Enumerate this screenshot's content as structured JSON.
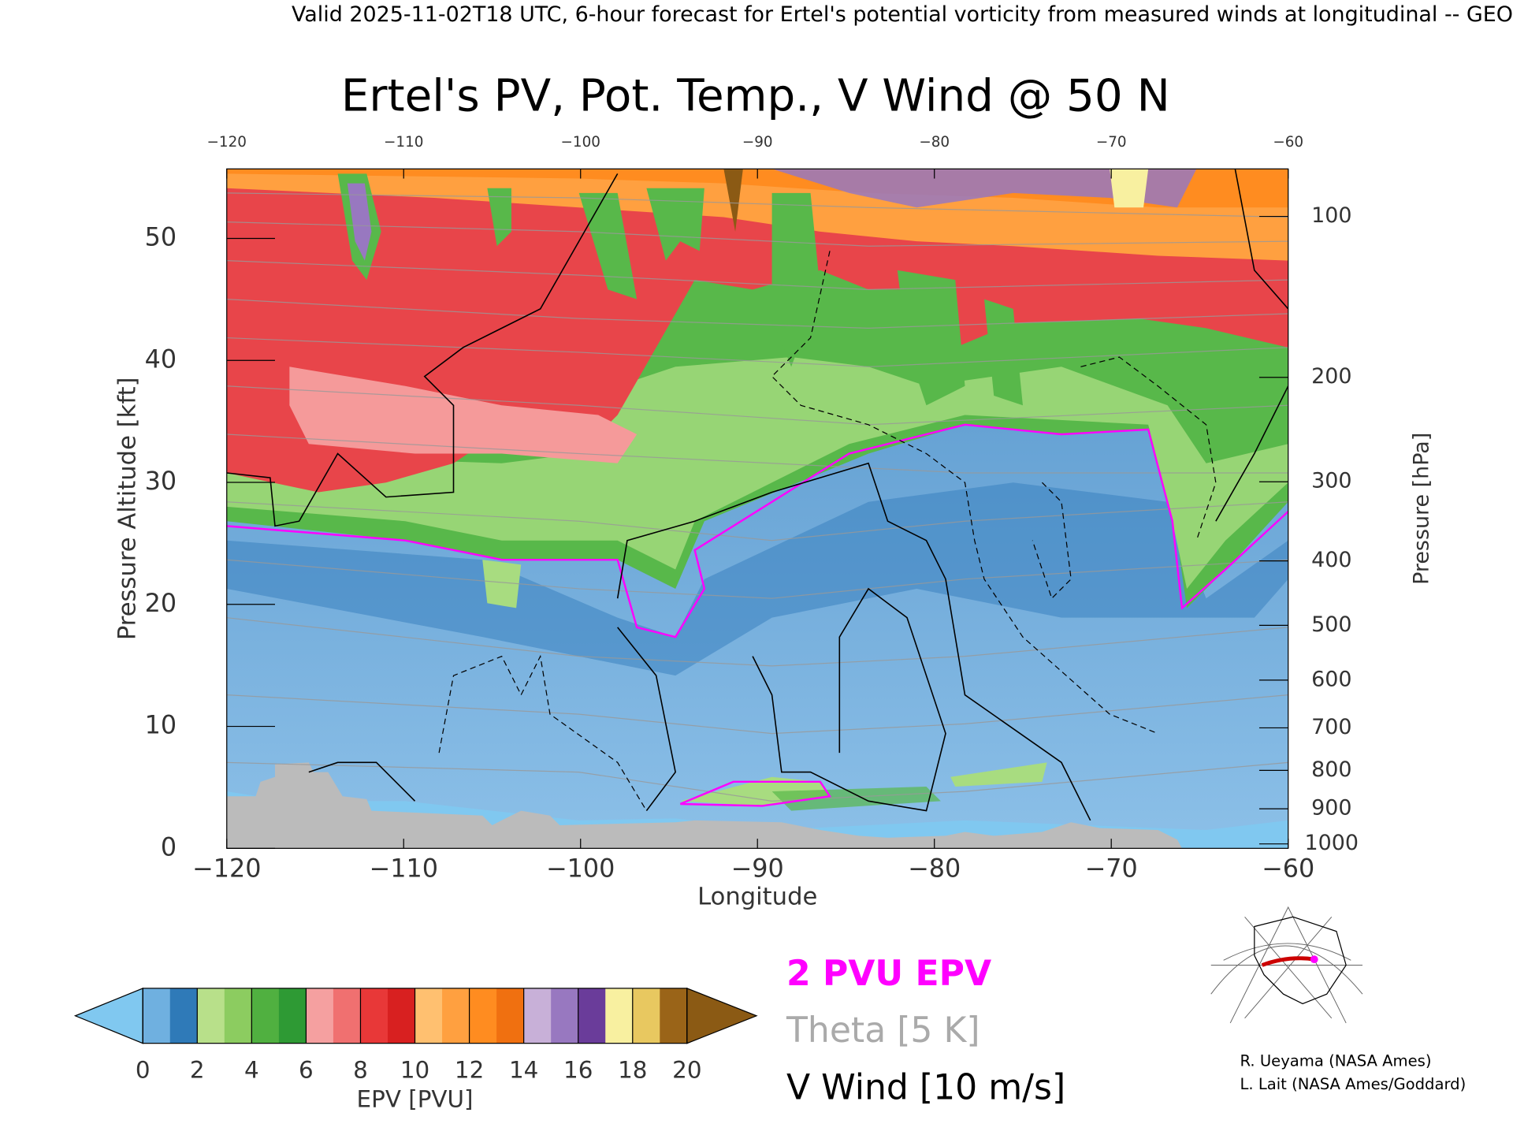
{
  "chart_data": {
    "type": "contour",
    "header": "Valid 2025-11-02T18 UTC, 6-hour forecast for Ertel's potential vorticity from measured winds at longitudinal -- GEO",
    "title": "Ertel's PV, Pot. Temp., V Wind @ 50 N",
    "xlabel": "Longitude",
    "ylabel": "Pressure Altitude [kft]",
    "y2label": "Pressure [hPa]",
    "xlim": [
      -120,
      -60
    ],
    "xticks": [
      {
        "value": -120,
        "label": "−120"
      },
      {
        "value": -110,
        "label": "−110"
      },
      {
        "value": -100,
        "label": "−100"
      },
      {
        "value": -90,
        "label": "−90"
      },
      {
        "value": -80,
        "label": "−80"
      },
      {
        "value": -70,
        "label": "−70"
      },
      {
        "value": -60,
        "label": "−60"
      }
    ],
    "ylim": [
      0,
      55.7
    ],
    "yticks": [
      0,
      10,
      20,
      30,
      40,
      50
    ],
    "y2scale": "pressure-altitude",
    "y2ticks": [
      100,
      200,
      300,
      400,
      500,
      600,
      700,
      800,
      900,
      1000
    ],
    "colorbar": {
      "label": "EPV [PVU]",
      "lim": [
        0,
        20
      ],
      "ticks": [
        0,
        2,
        4,
        6,
        8,
        10,
        12,
        14,
        16,
        18,
        20
      ],
      "under_color": "#80c8f0",
      "over_color": "#8b5a14",
      "colors": [
        "#6fb0e0",
        "#2f7ab8",
        "#b8e08a",
        "#8ccc60",
        "#50b040",
        "#2e9a34",
        "#f5a0a0",
        "#f07070",
        "#e83838",
        "#d82020",
        "#ffc070",
        "#ffa040",
        "#ff8c20",
        "#f07010",
        "#c8b0d8",
        "#9878c0",
        "#6a3c9a",
        "#f8f0a0",
        "#e8c860",
        "#9a6418"
      ]
    },
    "legend": [
      {
        "name": "2 PVU EPV",
        "color": "#ff00ff"
      },
      {
        "name": "Theta [5 K]",
        "color": "#aaaaaa"
      },
      {
        "name": "V Wind [10 m/s]",
        "color": "#000000"
      }
    ],
    "credits": [
      "R. Ueyama (NASA Ames)",
      "L. Lait (NASA Ames/Goddard)"
    ]
  }
}
